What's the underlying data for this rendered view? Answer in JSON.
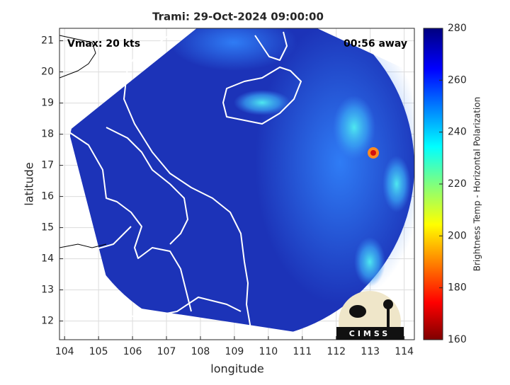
{
  "chart_data": {
    "type": "map",
    "title": "Trami: 29-Oct-2024 09:00:00",
    "annotations": [
      "Vmax: 20 kts",
      "00:56 away"
    ],
    "xlabel": "longitude",
    "ylabel": "latitude",
    "xlim": [
      103.85,
      114.3
    ],
    "ylim": [
      11.4,
      21.4
    ],
    "xticks": [
      104,
      105,
      106,
      107,
      108,
      109,
      110,
      111,
      112,
      113,
      114
    ],
    "yticks": [
      12,
      13,
      14,
      15,
      16,
      17,
      18,
      19,
      20,
      21
    ],
    "grid": true,
    "colorbar": {
      "label": "Brightness Temp - Horizontal Polarization",
      "lim": [
        160,
        280
      ],
      "ticks": [
        160,
        180,
        200,
        220,
        240,
        260,
        280
      ]
    },
    "logo": "CIMSS"
  }
}
